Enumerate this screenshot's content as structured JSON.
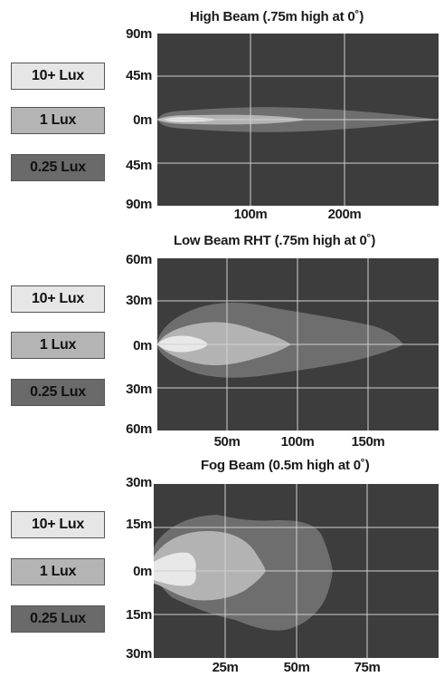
{
  "chart_data": [
    {
      "type": "area",
      "title": "High Beam (.75m high at 0˚)",
      "xlabel": "",
      "ylabel": "",
      "x_ticks": [
        "100m",
        "200m"
      ],
      "x_tick_values": [
        100,
        200
      ],
      "xlim": [
        0,
        300
      ],
      "y_ticks": [
        "90m",
        "45m",
        "0m",
        "45m",
        "90m"
      ],
      "ylim": [
        -90,
        90
      ],
      "grid": true,
      "legend": [
        "10+ Lux",
        "1 Lux",
        "0.25 Lux"
      ],
      "series": [
        {
          "name": "0.25 Lux",
          "reach_m": 300,
          "max_half_width_m": 17
        },
        {
          "name": "1 Lux",
          "reach_m": 158,
          "max_half_width_m": 5
        },
        {
          "name": "10+ Lux",
          "reach_m": 60,
          "max_half_width_m": 2
        }
      ]
    },
    {
      "type": "area",
      "title": "Low Beam RHT (.75m high at 0˚)",
      "xlabel": "",
      "ylabel": "",
      "x_ticks": [
        "50m",
        "100m",
        "150m"
      ],
      "x_tick_values": [
        50,
        100,
        150
      ],
      "xlim": [
        0,
        200
      ],
      "y_ticks": [
        "60m",
        "30m",
        "0m",
        "30m",
        "60m"
      ],
      "ylim": [
        -60,
        60
      ],
      "grid": true,
      "legend": [
        "10+ Lux",
        "1 Lux",
        "0.25 Lux"
      ],
      "series": [
        {
          "name": "0.25 Lux",
          "reach_m": 176,
          "max_half_width_m": 22
        },
        {
          "name": "1 Lux",
          "reach_m": 97,
          "max_half_width_m": 14
        },
        {
          "name": "10+ Lux",
          "reach_m": 36,
          "max_half_width_m": 5
        }
      ]
    },
    {
      "type": "area",
      "title": "Fog Beam (0.5m high at 0˚)",
      "xlabel": "",
      "ylabel": "",
      "x_ticks": [
        "25m",
        "50m",
        "75m"
      ],
      "x_tick_values": [
        25,
        50,
        75
      ],
      "xlim": [
        0,
        100
      ],
      "y_ticks": [
        "30m",
        "15m",
        "0m",
        "15m",
        "30m"
      ],
      "ylim": [
        -30,
        30
      ],
      "grid": true,
      "legend": [
        "10+ Lux",
        "1 Lux",
        "0.25 Lux"
      ],
      "series": [
        {
          "name": "0.25 Lux",
          "reach_m": 62,
          "max_half_width_m": 18
        },
        {
          "name": "1 Lux",
          "reach_m": 38,
          "max_half_width_m": 10
        },
        {
          "name": "10+ Lux",
          "reach_m": 13,
          "max_half_width_m": 6
        }
      ]
    }
  ],
  "colors": {
    "plot_background": "#3d3d3d",
    "lux_025": "#6e6e6e",
    "lux_1": "#b3b3b3",
    "lux_10": "#e8e8e8",
    "grid": "#d0d0d0"
  }
}
